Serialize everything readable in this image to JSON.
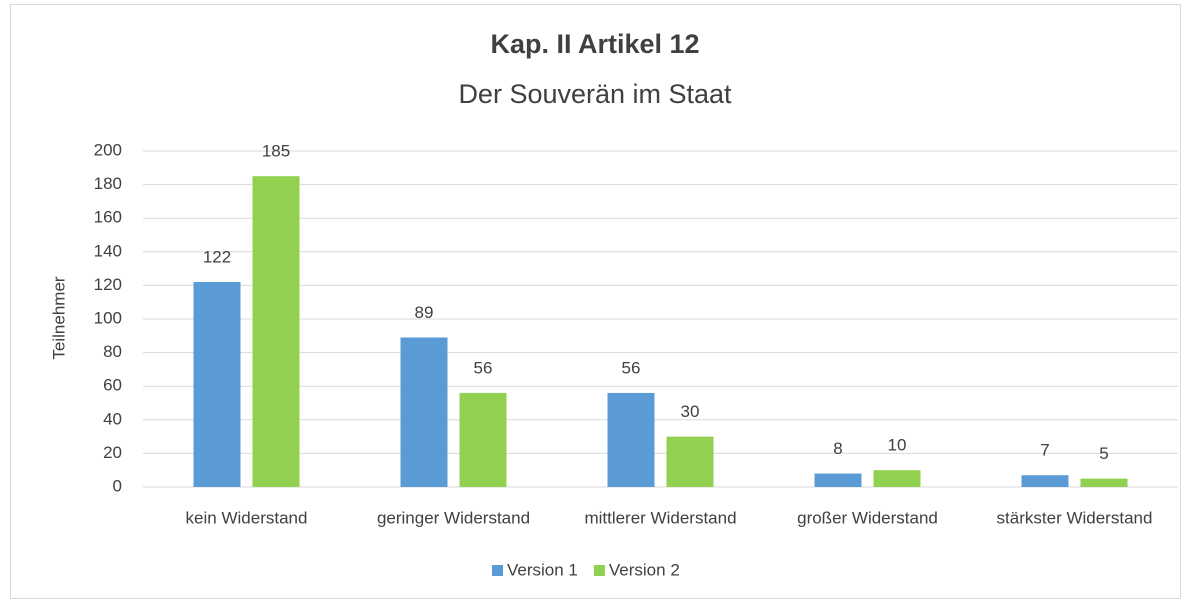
{
  "chart_data": {
    "type": "bar",
    "title": "Kap. II Artikel 12",
    "subtitle": "Der Souverän im Staat",
    "y_label": "Teilnehmer",
    "categories": [
      "kein Widerstand",
      "geringer Widerstand",
      "mittlerer Widerstand",
      "großer Widerstand",
      "stärkster Widerstand"
    ],
    "series": [
      {
        "name": "Version 1",
        "color": "#5b9bd5",
        "values": [
          122,
          89,
          56,
          8,
          7
        ]
      },
      {
        "name": "Version 2",
        "color": "#92d050",
        "values": [
          185,
          56,
          30,
          10,
          5
        ]
      }
    ],
    "ylim": [
      0,
      200
    ],
    "yticks": [
      0,
      20,
      40,
      60,
      80,
      100,
      120,
      140,
      160,
      180,
      200
    ],
    "grid": true,
    "legend": "bottom"
  }
}
